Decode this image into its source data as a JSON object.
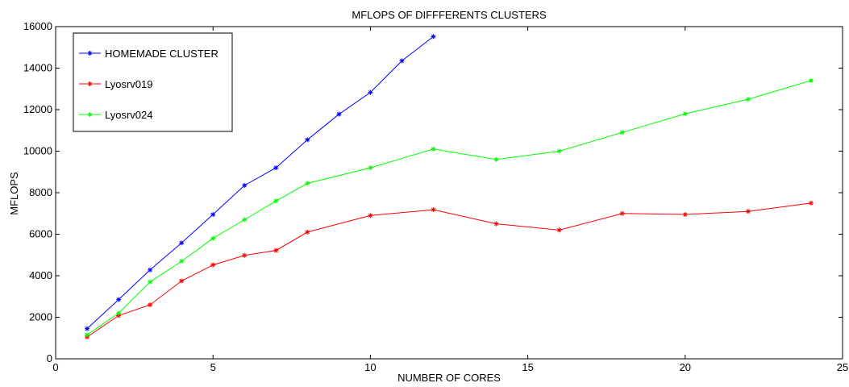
{
  "chart_data": {
    "type": "line",
    "title": "MFLOPS OF DIFFFERENTS CLUSTERS",
    "xlabel": "NUMBER OF CORES",
    "ylabel": "MFLOPS",
    "xlim": [
      0,
      25
    ],
    "ylim": [
      0,
      16000
    ],
    "xticks": [
      0,
      5,
      10,
      15,
      20,
      25
    ],
    "yticks": [
      0,
      2000,
      4000,
      6000,
      8000,
      10000,
      12000,
      14000,
      16000
    ],
    "grid": false,
    "legend_position": "top-left",
    "series": [
      {
        "name": "HOMEMADE CLUSTER",
        "color": "#0000ff",
        "x": [
          1,
          2,
          3,
          4,
          5,
          6,
          7,
          8,
          9,
          10,
          11,
          12
        ],
        "y": [
          1450,
          2850,
          4280,
          5580,
          6950,
          8350,
          9200,
          10550,
          11780,
          12830,
          14350,
          15520
        ]
      },
      {
        "name": "Lyosrv019",
        "color": "#ff0000",
        "x": [
          1,
          2,
          3,
          4,
          5,
          6,
          7,
          8,
          10,
          12,
          14,
          16,
          18,
          20,
          22,
          24
        ],
        "y": [
          1050,
          2080,
          2600,
          3750,
          4520,
          4980,
          5220,
          6100,
          6900,
          7180,
          6500,
          6200,
          7000,
          6950,
          7100,
          7500
        ]
      },
      {
        "name": "Lyosrv024",
        "color": "#00ff00",
        "x": [
          1,
          2,
          3,
          4,
          5,
          6,
          7,
          8,
          10,
          12,
          14,
          16,
          18,
          20,
          22,
          24
        ],
        "y": [
          1150,
          2200,
          3700,
          4700,
          5800,
          6700,
          7600,
          8450,
          9200,
          10100,
          9600,
          10000,
          10900,
          11800,
          12500,
          13400
        ]
      }
    ]
  }
}
